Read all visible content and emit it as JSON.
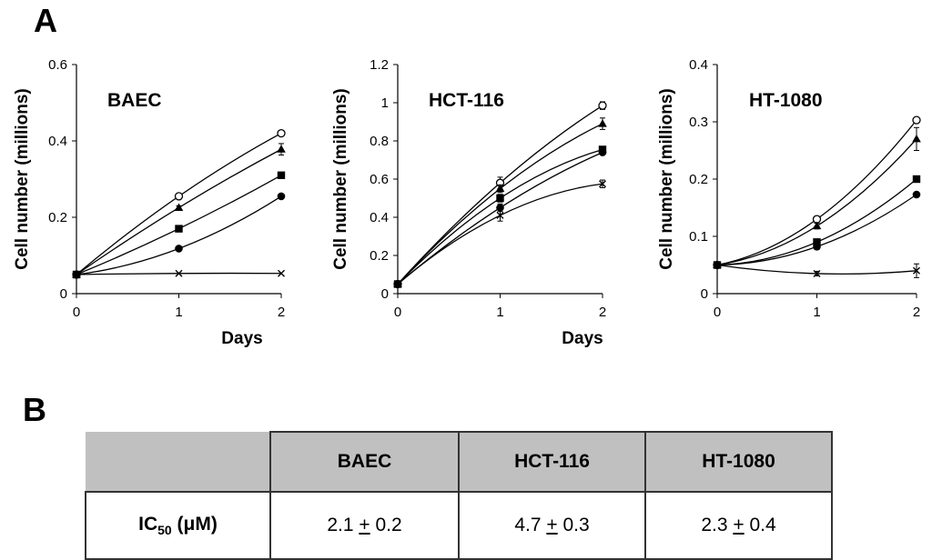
{
  "panels": {
    "a": "A",
    "b": "B"
  },
  "colors": {
    "stroke": "#000000",
    "header_fill": "#c0c0c0",
    "border": "#333333"
  },
  "chart_data": [
    {
      "type": "line",
      "title": "BAEC",
      "ylabel": "Cell number (millions)",
      "xlabel": "Days",
      "x": [
        0,
        1,
        2
      ],
      "xticks": [
        "0",
        "1",
        "2"
      ],
      "ylim": [
        0,
        0.6
      ],
      "yticks": [
        "0",
        "0.2",
        "0.4",
        "0.6"
      ],
      "series": [
        {
          "name": "open-circle",
          "marker": "circle-open",
          "values": [
            0.05,
            0.255,
            0.42
          ],
          "err": [
            0,
            0.005,
            0.006
          ]
        },
        {
          "name": "triangle",
          "marker": "triangle",
          "values": [
            0.05,
            0.225,
            0.378
          ],
          "err": [
            0,
            0.005,
            0.015
          ]
        },
        {
          "name": "square",
          "marker": "square",
          "values": [
            0.05,
            0.17,
            0.31
          ],
          "err": [
            0,
            0,
            0
          ]
        },
        {
          "name": "filled-circle",
          "marker": "circle",
          "values": [
            0.05,
            0.118,
            0.255
          ],
          "err": [
            0,
            0,
            0
          ]
        },
        {
          "name": "cross",
          "marker": "x",
          "values": [
            0.05,
            0.053,
            0.053
          ],
          "err": [
            0,
            0,
            0
          ]
        }
      ]
    },
    {
      "type": "line",
      "title": "HCT-116",
      "ylabel": "Cell number (millions)",
      "xlabel": "Days",
      "x": [
        0,
        1,
        2
      ],
      "xticks": [
        "0",
        "1",
        "2"
      ],
      "ylim": [
        0,
        1.2
      ],
      "yticks": [
        "0",
        "0.2",
        "0.4",
        "0.6",
        "0.8",
        "1",
        "1.2"
      ],
      "series": [
        {
          "name": "open-circle",
          "marker": "circle-open",
          "values": [
            0.05,
            0.58,
            0.985
          ],
          "err": [
            0,
            0.03,
            0.02
          ]
        },
        {
          "name": "triangle",
          "marker": "triangle",
          "values": [
            0.05,
            0.55,
            0.89
          ],
          "err": [
            0,
            0.02,
            0.03
          ]
        },
        {
          "name": "square",
          "marker": "square",
          "values": [
            0.05,
            0.5,
            0.755
          ],
          "err": [
            0,
            0.02,
            0.01
          ]
        },
        {
          "name": "filled-circle",
          "marker": "circle",
          "values": [
            0.05,
            0.45,
            0.74
          ],
          "err": [
            0,
            0.02,
            0.01
          ]
        },
        {
          "name": "cross",
          "marker": "x",
          "values": [
            0.05,
            0.41,
            0.575
          ],
          "err": [
            0,
            0.03,
            0.02
          ]
        }
      ]
    },
    {
      "type": "line",
      "title": "HT-1080",
      "ylabel": "Cell number (millions)",
      "xlabel": "",
      "x": [
        0,
        1,
        2
      ],
      "xticks": [
        "0",
        "1",
        "2"
      ],
      "ylim": [
        0,
        0.4
      ],
      "yticks": [
        "0",
        "0.1",
        "0.2",
        "0.3",
        "0.4"
      ],
      "series": [
        {
          "name": "open-circle",
          "marker": "circle-open",
          "values": [
            0.05,
            0.13,
            0.303
          ],
          "err": [
            0,
            0.005,
            0.005
          ]
        },
        {
          "name": "triangle",
          "marker": "triangle",
          "values": [
            0.05,
            0.118,
            0.27
          ],
          "err": [
            0,
            0.005,
            0.02
          ]
        },
        {
          "name": "square",
          "marker": "square",
          "values": [
            0.05,
            0.09,
            0.2
          ],
          "err": [
            0,
            0.005,
            0.004
          ]
        },
        {
          "name": "filled-circle",
          "marker": "circle",
          "values": [
            0.05,
            0.082,
            0.173
          ],
          "err": [
            0,
            0.005,
            0.004
          ]
        },
        {
          "name": "cross",
          "marker": "x",
          "values": [
            0.05,
            0.035,
            0.04
          ],
          "err": [
            0,
            0.004,
            0.012
          ]
        }
      ]
    }
  ],
  "table": {
    "columns": [
      "BAEC",
      "HCT-116",
      "HT-1080"
    ],
    "row_label": {
      "main": "IC",
      "sub": "50",
      "unit": " (μM)"
    },
    "values": [
      {
        "mean": "2.1",
        "pm": "+",
        "err": "0.2"
      },
      {
        "mean": "4.7",
        "pm": "+",
        "err": "0.3"
      },
      {
        "mean": "2.3",
        "pm": "+",
        "err": "0.4"
      }
    ]
  }
}
